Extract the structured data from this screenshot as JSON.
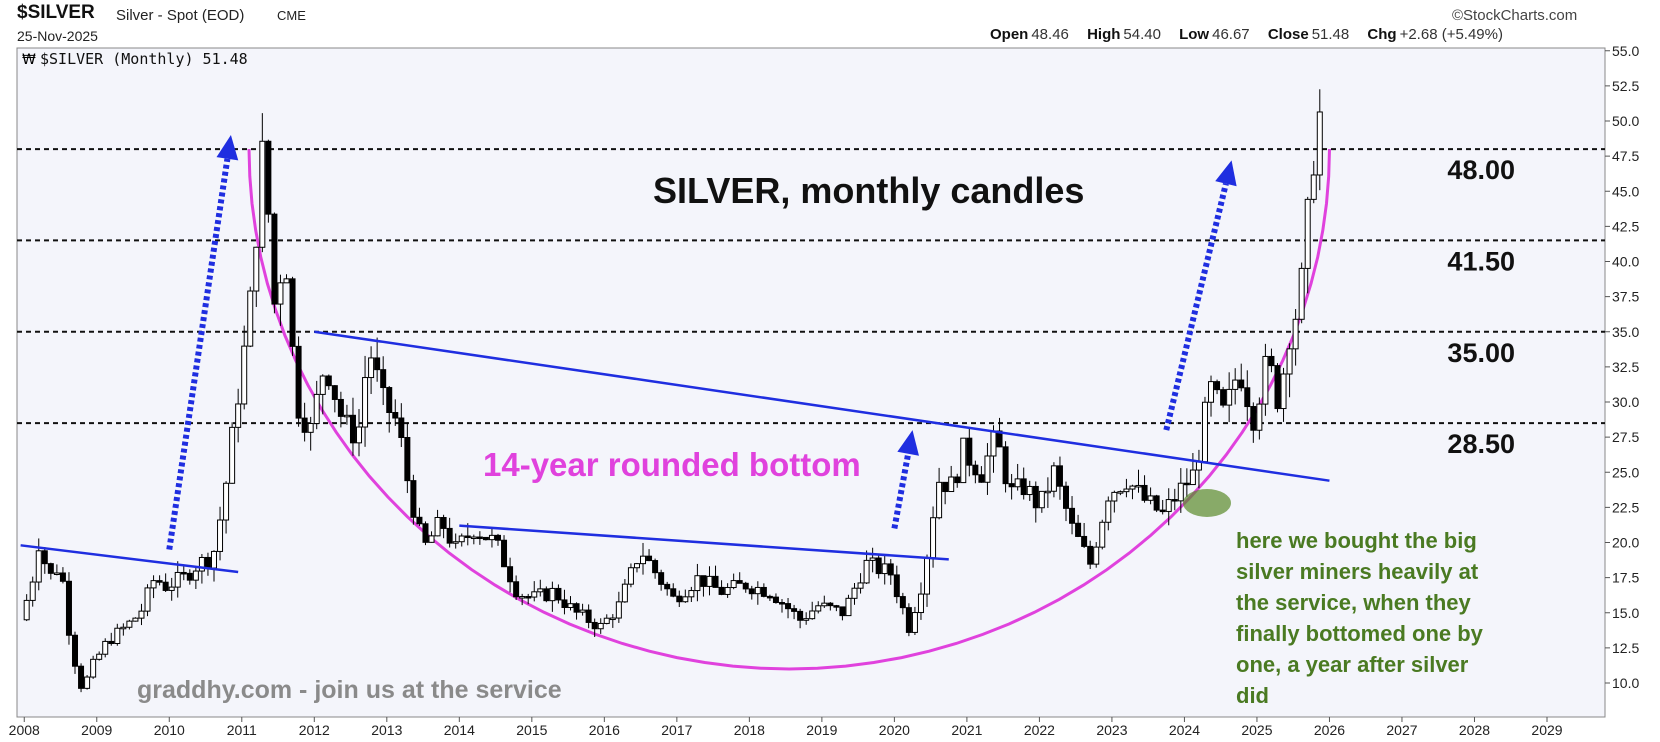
{
  "header": {
    "symbol": "$SILVER",
    "name": "Silver - Spot (EOD)",
    "exchange": "CME",
    "date": "25-Nov-2025",
    "source": "©StockCharts.com",
    "ohlc": {
      "open_label": "Open",
      "open": "48.46",
      "high_label": "High",
      "high": "54.40",
      "low_label": "Low",
      "low": "46.67",
      "close_label": "Close",
      "close": "51.48",
      "chg_label": "Chg",
      "chg": "+2.68 (+5.49%)"
    }
  },
  "chart_data": {
    "type": "candlestick",
    "legend": "$SILVER (Monthly) 51.48",
    "title": "SILVER, monthly candles",
    "x_ticks": [
      "2008",
      "2009",
      "2010",
      "2011",
      "2012",
      "2013",
      "2014",
      "2015",
      "2016",
      "2017",
      "2018",
      "2019",
      "2020",
      "2021",
      "2022",
      "2023",
      "2024",
      "2025",
      "2026",
      "2027",
      "2028",
      "2029"
    ],
    "y_ticks": [
      "10.0",
      "12.5",
      "15.0",
      "17.5",
      "20.0",
      "22.5",
      "25.0",
      "27.5",
      "30.0",
      "32.5",
      "35.0",
      "37.5",
      "40.0",
      "42.5",
      "45.0",
      "47.5",
      "50.0",
      "52.5",
      "55.0"
    ],
    "ylim": [
      7.5,
      55.0
    ],
    "xlim": [
      2007.9,
      2029.8
    ],
    "levels": [
      {
        "value": 48.0,
        "label": "48.00"
      },
      {
        "value": 41.5,
        "label": "41.50"
      },
      {
        "value": 35.0,
        "label": "35.00"
      },
      {
        "value": 28.5,
        "label": "28.50"
      }
    ],
    "closes": [
      {
        "x": 2007.95,
        "y": 14.5
      },
      {
        "x": 2008.1,
        "y": 17.0
      },
      {
        "x": 2008.2,
        "y": 20.0
      },
      {
        "x": 2008.35,
        "y": 17.5
      },
      {
        "x": 2008.5,
        "y": 18.5
      },
      {
        "x": 2008.65,
        "y": 12.5
      },
      {
        "x": 2008.8,
        "y": 9.5
      },
      {
        "x": 2008.95,
        "y": 11.3
      },
      {
        "x": 2009.15,
        "y": 13.0
      },
      {
        "x": 2009.4,
        "y": 14.0
      },
      {
        "x": 2009.6,
        "y": 15.0
      },
      {
        "x": 2009.8,
        "y": 17.5
      },
      {
        "x": 2009.95,
        "y": 16.9
      },
      {
        "x": 2010.2,
        "y": 17.5
      },
      {
        "x": 2010.4,
        "y": 18.5
      },
      {
        "x": 2010.6,
        "y": 19.0
      },
      {
        "x": 2010.75,
        "y": 23.0
      },
      {
        "x": 2010.95,
        "y": 30.6
      },
      {
        "x": 2011.1,
        "y": 36.0
      },
      {
        "x": 2011.3,
        "y": 48.5
      },
      {
        "x": 2011.45,
        "y": 37.0
      },
      {
        "x": 2011.6,
        "y": 41.0
      },
      {
        "x": 2011.75,
        "y": 30.0
      },
      {
        "x": 2011.95,
        "y": 28.0
      },
      {
        "x": 2012.15,
        "y": 33.0
      },
      {
        "x": 2012.4,
        "y": 28.5
      },
      {
        "x": 2012.6,
        "y": 27.5
      },
      {
        "x": 2012.75,
        "y": 34.0
      },
      {
        "x": 2012.95,
        "y": 30.0
      },
      {
        "x": 2013.15,
        "y": 28.5
      },
      {
        "x": 2013.3,
        "y": 24.0
      },
      {
        "x": 2013.5,
        "y": 19.5
      },
      {
        "x": 2013.75,
        "y": 21.5
      },
      {
        "x": 2013.95,
        "y": 19.5
      },
      {
        "x": 2014.2,
        "y": 21.0
      },
      {
        "x": 2014.5,
        "y": 20.0
      },
      {
        "x": 2014.8,
        "y": 16.5
      },
      {
        "x": 2015.0,
        "y": 16.0
      },
      {
        "x": 2015.3,
        "y": 16.5
      },
      {
        "x": 2015.6,
        "y": 15.0
      },
      {
        "x": 2015.95,
        "y": 14.0
      },
      {
        "x": 2016.2,
        "y": 15.5
      },
      {
        "x": 2016.5,
        "y": 19.5
      },
      {
        "x": 2016.75,
        "y": 17.5
      },
      {
        "x": 2016.95,
        "y": 16.0
      },
      {
        "x": 2017.3,
        "y": 17.5
      },
      {
        "x": 2017.6,
        "y": 16.5
      },
      {
        "x": 2017.95,
        "y": 17.0
      },
      {
        "x": 2018.3,
        "y": 16.5
      },
      {
        "x": 2018.7,
        "y": 14.5
      },
      {
        "x": 2018.95,
        "y": 15.5
      },
      {
        "x": 2019.3,
        "y": 15.0
      },
      {
        "x": 2019.6,
        "y": 18.5
      },
      {
        "x": 2019.95,
        "y": 17.8
      },
      {
        "x": 2020.2,
        "y": 14.0
      },
      {
        "x": 2020.4,
        "y": 17.5
      },
      {
        "x": 2020.6,
        "y": 24.5
      },
      {
        "x": 2020.8,
        "y": 24.0
      },
      {
        "x": 2020.95,
        "y": 26.5
      },
      {
        "x": 2021.2,
        "y": 25.0
      },
      {
        "x": 2021.4,
        "y": 27.5
      },
      {
        "x": 2021.6,
        "y": 23.5
      },
      {
        "x": 2021.8,
        "y": 24.0
      },
      {
        "x": 2022.0,
        "y": 22.5
      },
      {
        "x": 2022.2,
        "y": 25.0
      },
      {
        "x": 2022.45,
        "y": 21.0
      },
      {
        "x": 2022.7,
        "y": 18.5
      },
      {
        "x": 2022.95,
        "y": 23.5
      },
      {
        "x": 2023.2,
        "y": 24.5
      },
      {
        "x": 2023.45,
        "y": 23.0
      },
      {
        "x": 2023.7,
        "y": 22.0
      },
      {
        "x": 2023.95,
        "y": 23.8
      },
      {
        "x": 2024.15,
        "y": 25.0
      },
      {
        "x": 2024.35,
        "y": 31.0
      },
      {
        "x": 2024.55,
        "y": 29.0
      },
      {
        "x": 2024.75,
        "y": 32.5
      },
      {
        "x": 2024.95,
        "y": 29.0
      },
      {
        "x": 2025.15,
        "y": 33.0
      },
      {
        "x": 2025.3,
        "y": 30.0
      },
      {
        "x": 2025.45,
        "y": 35.0
      },
      {
        "x": 2025.55,
        "y": 36.5
      },
      {
        "x": 2025.65,
        "y": 39.5
      },
      {
        "x": 2025.75,
        "y": 46.5
      },
      {
        "x": 2025.82,
        "y": 48.8
      },
      {
        "x": 2025.9,
        "y": 51.48
      }
    ],
    "annotations": {
      "rounded_bottom": "14-year rounded bottom",
      "watermark": "graddhy.com - join us at the service",
      "note_lines": [
        "here we bought the big",
        "silver miners heavily at",
        "the service, when they",
        "finally bottomed one by",
        "one, a year after silver",
        "did"
      ]
    },
    "trendlines": [
      {
        "x1": 2007.95,
        "y1": 19.8,
        "x2": 2010.95,
        "y2": 17.9
      },
      {
        "x1": 2012.0,
        "y1": 35.0,
        "x2": 2026.0,
        "y2": 24.4
      },
      {
        "x1": 2014.0,
        "y1": 21.2,
        "x2": 2020.75,
        "y2": 18.8
      }
    ],
    "arrows": [
      {
        "x1": 2010.0,
        "y1": 19.5,
        "x2": 2010.85,
        "y2": 49.0
      },
      {
        "x1": 2020.0,
        "y1": 21.0,
        "x2": 2020.25,
        "y2": 28.0
      },
      {
        "x1": 2023.75,
        "y1": 28.0,
        "x2": 2024.65,
        "y2": 47.2
      }
    ],
    "colors": {
      "background": "#f4f5fb",
      "candle": "#000000",
      "trendline": "#1f2ee0",
      "arrow": "#1f2ee0",
      "curve": "#e042dd",
      "rounded_label": "#e042dd",
      "note": "#4a7a22",
      "watermark": "#8a8a8a",
      "highlight": "#5a8a2a"
    }
  }
}
